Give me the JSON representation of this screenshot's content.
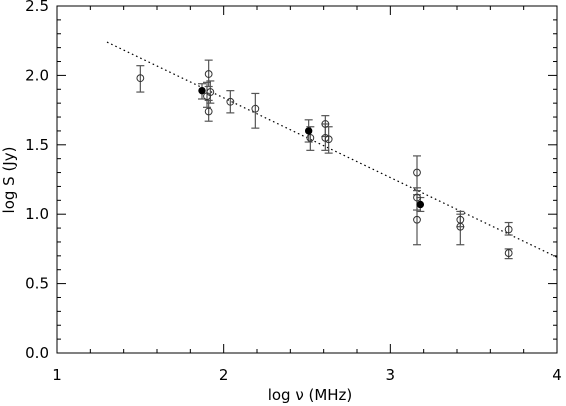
{
  "chart_data": {
    "type": "scatter",
    "title": "",
    "xlabel": "log ν (MHz)",
    "ylabel": "log S (Jy)",
    "xlim": [
      1,
      4
    ],
    "ylim": [
      0.0,
      2.5
    ],
    "x_ticks": [
      1,
      2,
      3,
      4
    ],
    "x_tick_labels": [
      "1",
      "2",
      "3",
      "4"
    ],
    "y_ticks": [
      0.0,
      0.5,
      1.0,
      1.5,
      2.0,
      2.5
    ],
    "y_tick_labels": [
      "0.0",
      "0.5",
      "1.0",
      "1.5",
      "2.0",
      "2.5"
    ],
    "grid": false,
    "legend": "none",
    "series": [
      {
        "marker": "open-circle",
        "points": [
          {
            "x": 1.5,
            "y": 1.98,
            "lo": 1.88,
            "hi": 2.07
          },
          {
            "x": 1.9,
            "y": 1.85,
            "lo": 1.77,
            "hi": 1.95
          },
          {
            "x": 1.91,
            "y": 2.01,
            "lo": 1.92,
            "hi": 2.11
          },
          {
            "x": 1.91,
            "y": 1.74,
            "lo": 1.67,
            "hi": 1.82
          },
          {
            "x": 1.92,
            "y": 1.88,
            "lo": 1.8,
            "hi": 1.96
          },
          {
            "x": 2.04,
            "y": 1.81,
            "lo": 1.73,
            "hi": 1.89
          },
          {
            "x": 2.19,
            "y": 1.76,
            "lo": 1.62,
            "hi": 1.87
          },
          {
            "x": 2.52,
            "y": 1.55,
            "lo": 1.46,
            "hi": 1.63
          },
          {
            "x": 2.61,
            "y": 1.65,
            "lo": 1.56,
            "hi": 1.71
          },
          {
            "x": 2.61,
            "y": 1.55,
            "lo": 1.46,
            "hi": 1.65
          },
          {
            "x": 2.63,
            "y": 1.54,
            "lo": 1.44,
            "hi": 1.63
          },
          {
            "x": 3.16,
            "y": 1.3,
            "lo": 1.17,
            "hi": 1.42
          },
          {
            "x": 3.16,
            "y": 1.12,
            "lo": 1.03,
            "hi": 1.19
          },
          {
            "x": 3.16,
            "y": 0.96,
            "lo": 0.78,
            "hi": 1.14
          },
          {
            "x": 3.42,
            "y": 0.96,
            "lo": 0.91,
            "hi": 1.0
          },
          {
            "x": 3.42,
            "y": 0.91,
            "lo": 0.78,
            "hi": 1.02
          },
          {
            "x": 3.71,
            "y": 0.89,
            "lo": 0.85,
            "hi": 0.94
          },
          {
            "x": 3.71,
            "y": 0.72,
            "lo": 0.68,
            "hi": 0.75
          }
        ]
      },
      {
        "marker": "filled-circle",
        "points": [
          {
            "x": 1.87,
            "y": 1.89,
            "lo": 1.83,
            "hi": 1.94
          },
          {
            "x": 2.51,
            "y": 1.6,
            "lo": 1.52,
            "hi": 1.68
          },
          {
            "x": 3.18,
            "y": 1.07,
            "lo": 1.02,
            "hi": 1.12
          }
        ]
      }
    ],
    "fit_line": {
      "style": "dotted",
      "x": [
        1.3,
        4.0
      ],
      "y": [
        2.24,
        0.69
      ]
    }
  }
}
